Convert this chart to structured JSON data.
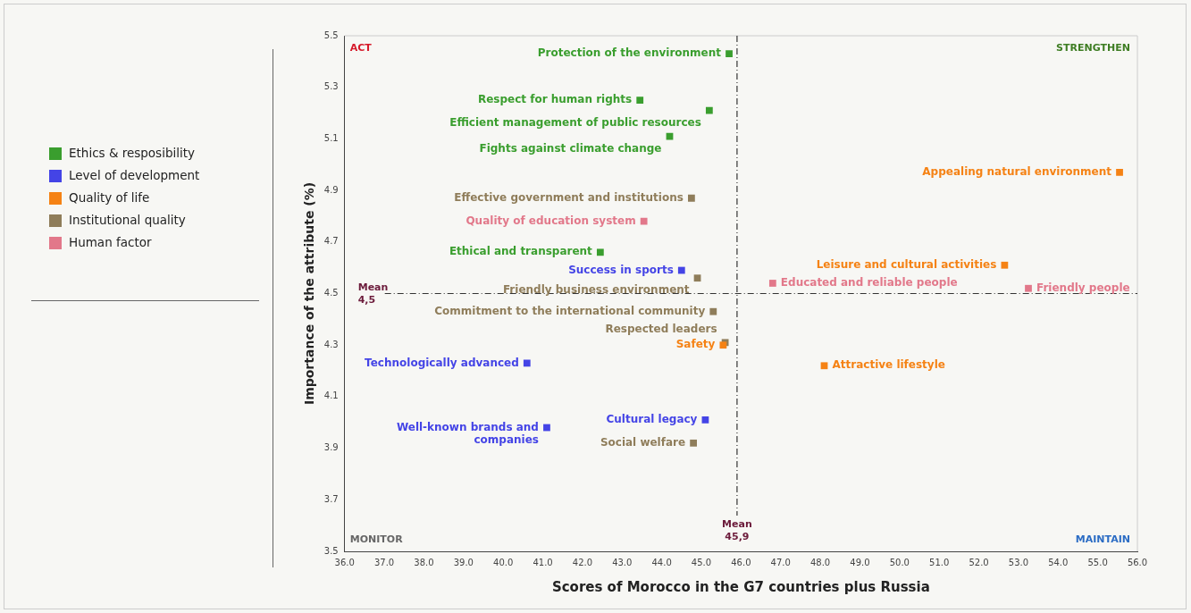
{
  "chart_data": {
    "type": "scatter",
    "xlabel": "Scores of Morocco in the G7 countries plus Russia",
    "ylabel": "Importance of the attribute (%)",
    "series": [
      {
        "name": "Ethics & resposibility",
        "color": "#3a9e2e",
        "x": [
          45.7,
          43.45,
          45.2,
          44.2,
          42.45
        ],
        "values": [
          5.43,
          5.25,
          5.21,
          5.11,
          4.66
        ],
        "value_labels": [
          "Protection of the environment",
          "Respect for human rights",
          "Efficient management of public resources",
          "Fights against climate change",
          "Ethical and transparent"
        ]
      },
      {
        "name": "Level of development",
        "color": "#4444e6",
        "x": [
          44.5,
          40.6,
          41.1,
          45.1
        ],
        "values": [
          4.59,
          4.23,
          3.98,
          4.01
        ],
        "value_labels": [
          "Success in sports",
          "Technologically advanced",
          "Well-known brands and companies",
          "Cultural legacy"
        ]
      },
      {
        "name": "Quality of life",
        "color": "#f58214",
        "x": [
          55.55,
          52.65,
          45.55,
          48.1
        ],
        "values": [
          4.97,
          4.61,
          4.3,
          4.22
        ],
        "value_labels": [
          "Appealing natural environment",
          "Leisure and cultural activities",
          "Safety",
          "Attractive lifestyle"
        ]
      },
      {
        "name": "Institutional quality",
        "color": "#8f7d5a",
        "x": [
          44.75,
          44.9,
          45.3,
          45.6,
          44.8
        ],
        "values": [
          4.87,
          4.56,
          4.43,
          4.31,
          3.92
        ],
        "value_labels": [
          "Effective government and institutions",
          "Friendly business environment",
          "Commitment to the international community",
          "Respected leaders",
          "Social welfare"
        ]
      },
      {
        "name": "Human factor",
        "color": "#e2788a",
        "x": [
          43.55,
          46.8,
          53.25
        ],
        "values": [
          4.78,
          4.54,
          4.52
        ],
        "value_labels": [
          "Quality of education system",
          "Educated and reliable people",
          "Friendly people"
        ]
      }
    ],
    "xlim": [
      36,
      56
    ],
    "xticks": [
      {
        "value": 36,
        "label": "36.0"
      },
      {
        "value": 37,
        "label": "37.0"
      },
      {
        "value": 38,
        "label": "38.0"
      },
      {
        "value": 39,
        "label": "39.0"
      },
      {
        "value": 40,
        "label": "40.0"
      },
      {
        "value": 41,
        "label": "41.0"
      },
      {
        "value": 42,
        "label": "42.0"
      },
      {
        "value": 43,
        "label": "43.0"
      },
      {
        "value": 44,
        "label": "44.0"
      },
      {
        "value": 45,
        "label": "45.0"
      },
      {
        "value": 46,
        "label": "46.0"
      },
      {
        "value": 47,
        "label": "47.0"
      },
      {
        "value": 48,
        "label": "48.0"
      },
      {
        "value": 49,
        "label": "49.0"
      },
      {
        "value": 50,
        "label": "50.0"
      },
      {
        "value": 51,
        "label": "51.0"
      },
      {
        "value": 52,
        "label": "52.0"
      },
      {
        "value": 53,
        "label": "53.0"
      },
      {
        "value": 54,
        "label": "54.0"
      },
      {
        "value": 55,
        "label": "55.0"
      },
      {
        "value": 56,
        "label": "56.0"
      }
    ],
    "ylim": [
      3.5,
      5.5
    ],
    "yticks": [
      3.5,
      3.7,
      3.9,
      4.1,
      4.3,
      4.5,
      4.7,
      4.9,
      5.1,
      5.3,
      5.5
    ],
    "ref_lines": [
      {
        "axis": "x",
        "value": 45.9,
        "label": "Mean 45,9",
        "color": "#333333",
        "line_style": "dashed"
      },
      {
        "axis": "y",
        "value": 4.5,
        "label": "Mean 4,5",
        "color": "#333333",
        "line_style": "dashed"
      }
    ],
    "annotations": [
      "ACT",
      "STRENGTHEN",
      "MONITOR",
      "MAINTAIN"
    ],
    "marker": "square",
    "grid": false,
    "legend": "left"
  }
}
